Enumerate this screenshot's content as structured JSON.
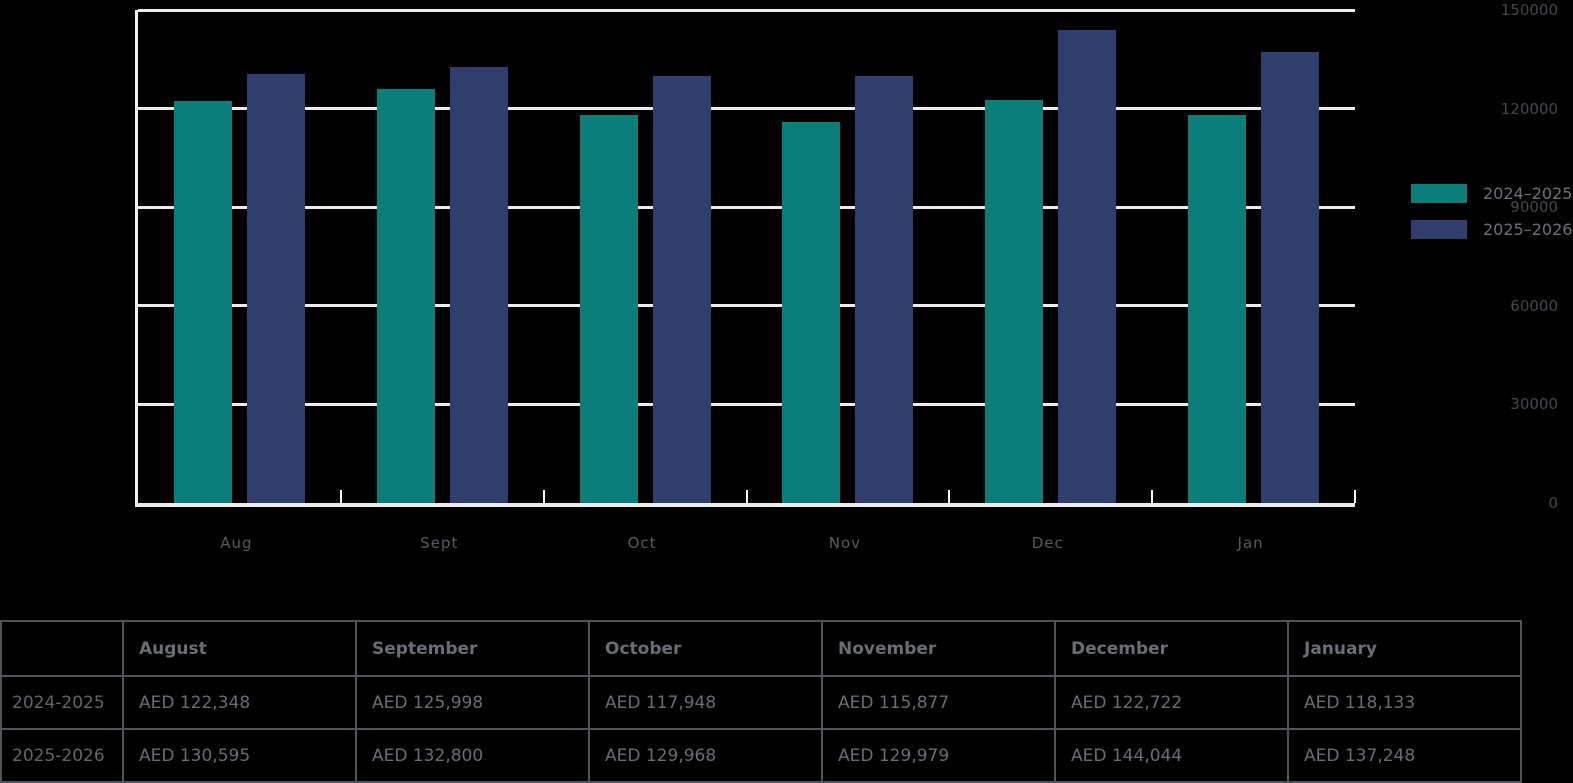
{
  "chart_data": {
    "type": "bar",
    "title": "",
    "xlabel": "",
    "ylabel": "",
    "categories": [
      "Aug",
      "Sept",
      "Oct",
      "Nov",
      "Dec",
      "Jan"
    ],
    "series": [
      {
        "name": "2024–2025",
        "color": "#0b7e79",
        "values": [
          122348,
          125998,
          117948,
          115877,
          122722,
          118133
        ]
      },
      {
        "name": "2025–2026",
        "color": "#2f3e6c",
        "values": [
          130595,
          132800,
          129968,
          129979,
          144044,
          137248
        ]
      }
    ],
    "ylim": [
      0,
      150000
    ],
    "y_ticks": [
      0,
      30000,
      60000,
      90000,
      120000,
      150000
    ],
    "grid": true,
    "legend_position": "right"
  },
  "table": {
    "columns": [
      "",
      "August",
      "September",
      "October",
      "November",
      "December",
      "January"
    ],
    "rows": [
      {
        "label": "2024-2025",
        "cells": [
          "AED 122,348",
          "AED 125,998",
          "AED 117,948",
          "AED 115,877",
          "AED 122,722",
          "AED 118,133"
        ]
      },
      {
        "label": "2025-2026",
        "cells": [
          "AED 130,595",
          "AED 132,800",
          "AED 129,968",
          "AED 129,979",
          "AED 144,044",
          "AED 137,248"
        ]
      }
    ]
  }
}
